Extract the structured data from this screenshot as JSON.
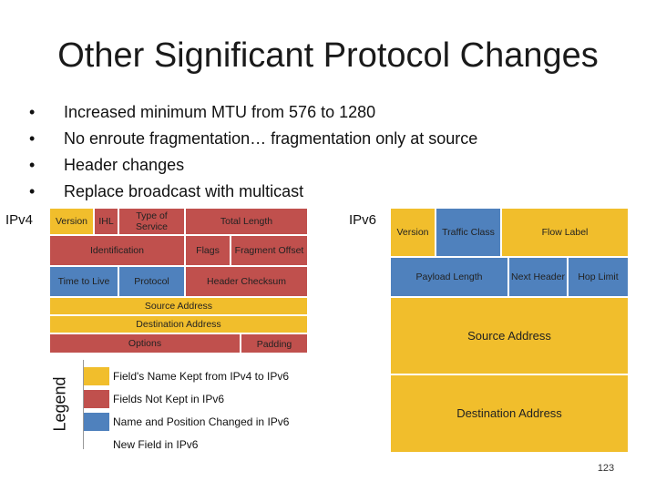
{
  "title": "Other Significant Protocol Changes",
  "bullets": [
    "Increased minimum MTU from 576 to 1280",
    "No enroute fragmentation… fragmentation only at source",
    "Header changes",
    "Replace broadcast with multicast"
  ],
  "ipv4": {
    "label": "IPv4",
    "fields": {
      "version": "Version",
      "ihl": "IHL",
      "type_of_service": "Type of Service",
      "total_length": "Total Length",
      "identification": "Identification",
      "flags": "Flags",
      "fragment_offset": "Fragment Offset",
      "time_to_live": "Time to Live",
      "protocol": "Protocol",
      "header_checksum": "Header Checksum",
      "source_address": "Source Address",
      "destination_address": "Destination Address",
      "options": "Options",
      "padding": "Padding"
    }
  },
  "ipv6": {
    "label": "IPv6",
    "fields": {
      "version": "Version",
      "traffic_class": "Traffic Class",
      "flow_label": "Flow Label",
      "payload_length": "Payload Length",
      "next_header": "Next Header",
      "hop_limit": "Hop Limit",
      "source_address": "Source Address",
      "destination_address": "Destination Address"
    }
  },
  "legend": {
    "title": "Legend",
    "items": [
      {
        "label": "Field's Name Kept from IPv4 to IPv6",
        "color": "#f1be2c"
      },
      {
        "label": "Fields Not Kept in IPv6",
        "color": "#c0504d"
      },
      {
        "label": "Name and Position Changed in IPv6",
        "color": "#4f81bd"
      },
      {
        "label": "New Field in IPv6",
        "color": "#f1be2c"
      }
    ]
  },
  "colors": {
    "kept": "#f1be2c",
    "removed": "#c0504d",
    "changed": "#4f81bd"
  },
  "page_number": "123"
}
